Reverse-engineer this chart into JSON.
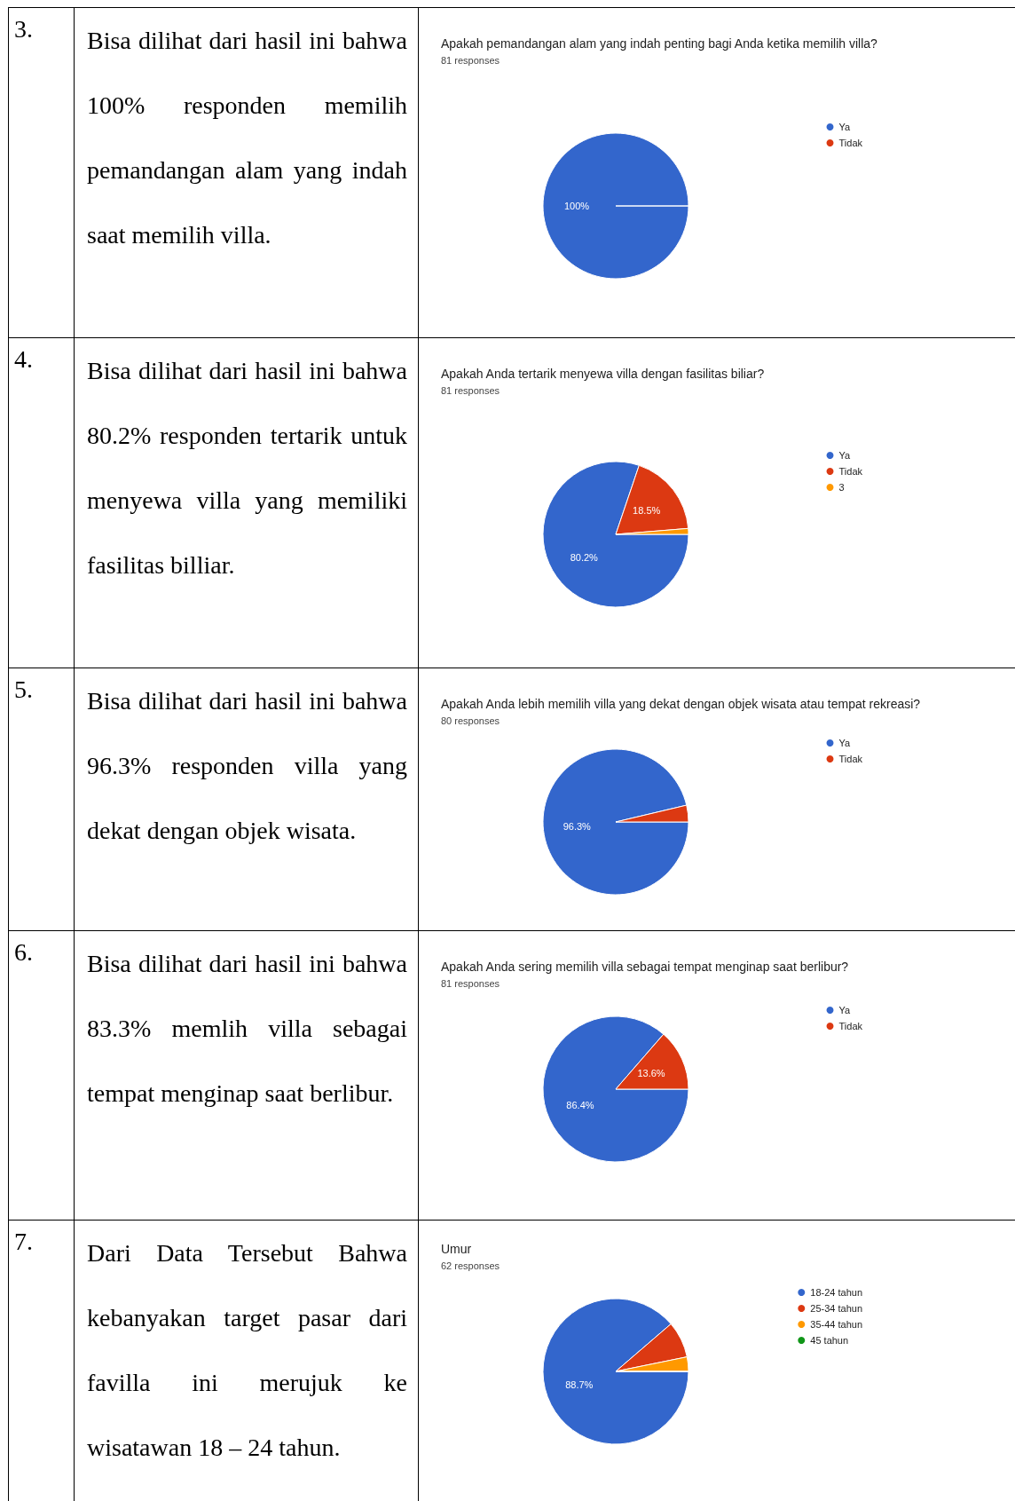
{
  "chart_data": [
    {
      "type": "pie",
      "title": "Apakah pemandangan alam yang indah penting bagi Anda ketika memilih villa?",
      "subtitle": "81 responses",
      "categories": [
        "Ya",
        "Tidak"
      ],
      "values": [
        100,
        0
      ],
      "colors": [
        "#3366cc",
        "#dc3912"
      ],
      "value_labels": [
        "100%",
        null
      ],
      "legend": "top right",
      "annotations": [
        "3.",
        "Bisa dilihat dari hasil ini bahwa 100% responden memilih pemandangan alam yang indah saat memilih villa."
      ]
    },
    {
      "type": "pie",
      "title": "Apakah Anda tertarik menyewa villa dengan fasilitas biliar?",
      "subtitle": "81 responses",
      "categories": [
        "Ya",
        "Tidak",
        "3"
      ],
      "values": [
        80.2,
        18.5,
        1.3
      ],
      "colors": [
        "#3366cc",
        "#dc3912",
        "#ff9900"
      ],
      "value_labels": [
        "80.2%",
        "18.5%",
        null
      ],
      "legend": "top right",
      "annotations": [
        "4.",
        "Bisa dilihat dari hasil ini bahwa 80.2% responden tertarik untuk menyewa villa yang memiliki fasilitas billiar."
      ]
    },
    {
      "type": "pie",
      "title": "Apakah Anda lebih memilih villa yang dekat dengan objek wisata atau tempat rekreasi?",
      "subtitle": "80 responses",
      "categories": [
        "Ya",
        "Tidak"
      ],
      "values": [
        96.3,
        3.7
      ],
      "colors": [
        "#3366cc",
        "#dc3912"
      ],
      "value_labels": [
        "96.3%",
        null
      ],
      "legend": "top right",
      "annotations": [
        "5.",
        "Bisa dilihat dari hasil ini bahwa 96.3% responden villa yang dekat dengan objek wisata."
      ]
    },
    {
      "type": "pie",
      "title": "Apakah Anda sering memilih villa sebagai tempat menginap saat berlibur?",
      "subtitle": "81 responses",
      "categories": [
        "Ya",
        "Tidak"
      ],
      "values": [
        86.4,
        13.6
      ],
      "colors": [
        "#3366cc",
        "#dc3912"
      ],
      "value_labels": [
        "86.4%",
        "13.6%"
      ],
      "legend": "top right",
      "annotations": [
        "6.",
        "Bisa dilihat dari hasil ini bahwa 83.3% memlih villa sebagai tempat menginap saat berlibur."
      ]
    },
    {
      "type": "pie",
      "title": "Umur",
      "subtitle": "62 responses",
      "categories": [
        "18-24 tahun",
        "25-34 tahun",
        "35-44 tahun",
        "45 tahun"
      ],
      "values": [
        88.7,
        8.1,
        3.2,
        0
      ],
      "colors": [
        "#3366cc",
        "#dc3912",
        "#ff9900",
        "#109618"
      ],
      "value_labels": [
        "88.7%",
        null,
        null,
        null
      ],
      "legend": "top right",
      "annotations": [
        "7.",
        "Dari Data Tersebut Bahwa kebanyakan target pasar dari favilla ini merujuk ke wisatawan 18 – 24 tahun."
      ]
    }
  ]
}
